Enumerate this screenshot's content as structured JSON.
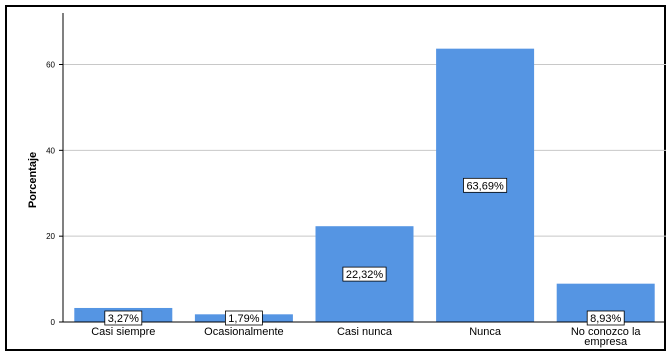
{
  "chart_data": {
    "type": "bar",
    "categories": [
      "Casi siempre",
      "Ocasionalmente",
      "Casi nunca",
      "Nunca",
      "No conozco la empresa"
    ],
    "values": [
      3.27,
      1.79,
      22.32,
      63.69,
      8.93
    ],
    "data_labels": [
      "3,27%",
      "1,79%",
      "22,32%",
      "63,69%",
      "8,93%"
    ],
    "title": "",
    "xlabel": "",
    "ylabel": "Porcentaje",
    "yticks": [
      0,
      20,
      40,
      60
    ],
    "ylim": [
      0,
      72
    ],
    "grid": true,
    "bar_color": "#5595e3"
  }
}
